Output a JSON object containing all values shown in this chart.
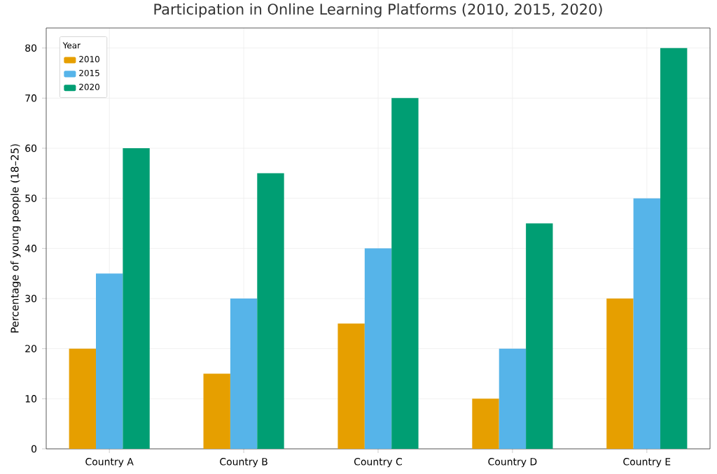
{
  "chart_data": {
    "type": "bar",
    "title": "Participation in Online Learning Platforms (2010, 2015, 2020)",
    "ylabel": "Percentage of young people (18–25)",
    "legend_title": "Year",
    "categories": [
      "Country A",
      "Country B",
      "Country C",
      "Country D",
      "Country E"
    ],
    "series": [
      {
        "name": "2010",
        "color": "#e69f00",
        "values": [
          20,
          15,
          25,
          10,
          30
        ]
      },
      {
        "name": "2015",
        "color": "#56b4e9",
        "values": [
          35,
          30,
          40,
          20,
          50
        ]
      },
      {
        "name": "2020",
        "color": "#009e73",
        "values": [
          60,
          55,
          70,
          45,
          80
        ]
      }
    ],
    "ylim": [
      0,
      84
    ],
    "yticks": [
      0,
      10,
      20,
      30,
      40,
      50,
      60,
      70,
      80
    ],
    "grid": true,
    "legend": "top left"
  }
}
